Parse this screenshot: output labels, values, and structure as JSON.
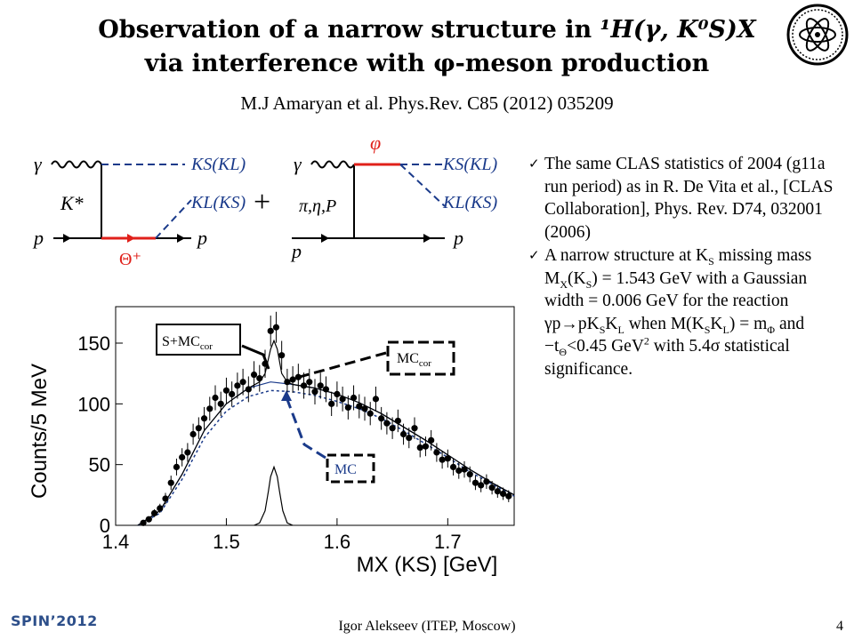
{
  "header": {
    "title_line1_prefix": "Observation of a narrow structure in ",
    "title_line1_formula": "¹H(γ, K⁰S)X",
    "title_line2": "via interference with φ-meson production",
    "citation": "M.J Amaryan et al. Phys.Rev. C85 (2012) 035209"
  },
  "diagrams": {
    "left": {
      "gamma": "γ",
      "kstar": "K*",
      "p_in": "p",
      "p_out": "p",
      "theta": "Θ⁺",
      "out_top": "KS(KL)",
      "out_bottom": "KL(KS)"
    },
    "plus": "+",
    "right": {
      "gamma": "γ",
      "phi": "φ",
      "exchange": "π,η,P",
      "p_in": "p",
      "p_out": "p",
      "out_top": "KS(KL)",
      "out_bottom": "KL(KS)"
    }
  },
  "bullets": {
    "item1": "The same CLAS statistics of 2004 (g11a run period) as in R. De Vita et al., [CLAS Collaboration], Phys. Rev. D74, 032001 (2006)",
    "item2_a": "A narrow structure at K",
    "item2_b": " missing mass M",
    "item2_c": "(K",
    "item2_d": ") = 1.543 GeV with a Gaussian width  = 0.006 GeV for the reaction γp→pK",
    "item2_e": "K",
    "item2_f": " when M(K",
    "item2_g": "K",
    "item2_h": ") = m",
    "item2_i": " and −t",
    "item2_j": "<0.45 GeV",
    "item2_k": " with 5.4σ statistical significance.",
    "sub_S": "S",
    "sub_X": "X",
    "sub_L": "L",
    "sub_phi": "Φ",
    "sub_theta": "Θ",
    "sup_2": "2"
  },
  "chart_data": {
    "type": "scatter",
    "xlabel": "MX (KS) [GeV]",
    "ylabel": "Counts/5 MeV",
    "xlim": [
      1.4,
      1.76
    ],
    "ylim": [
      0,
      180
    ],
    "x_ticks": [
      "1.4",
      "1.5",
      "1.6",
      "1.7"
    ],
    "y_ticks": [
      "0",
      "50",
      "100",
      "150"
    ],
    "grid": false,
    "annotations": {
      "s_mc": "S+MC",
      "s_mc_sub": "cor",
      "mc_cor": "MC",
      "mc_cor_sub": "cor",
      "mc": "MC"
    },
    "series": [
      {
        "name": "data",
        "x": [
          1.425,
          1.43,
          1.435,
          1.44,
          1.445,
          1.45,
          1.455,
          1.46,
          1.465,
          1.47,
          1.475,
          1.48,
          1.485,
          1.49,
          1.495,
          1.5,
          1.505,
          1.51,
          1.515,
          1.52,
          1.525,
          1.53,
          1.535,
          1.54,
          1.545,
          1.55,
          1.555,
          1.56,
          1.565,
          1.57,
          1.575,
          1.58,
          1.585,
          1.59,
          1.595,
          1.6,
          1.605,
          1.61,
          1.615,
          1.62,
          1.625,
          1.63,
          1.635,
          1.64,
          1.645,
          1.65,
          1.655,
          1.66,
          1.665,
          1.67,
          1.675,
          1.68,
          1.685,
          1.69,
          1.695,
          1.7,
          1.705,
          1.71,
          1.715,
          1.72,
          1.725,
          1.73,
          1.735,
          1.74,
          1.745,
          1.75,
          1.755
        ],
        "y": [
          2,
          5,
          10,
          14,
          22,
          35,
          48,
          56,
          60,
          75,
          80,
          88,
          96,
          105,
          100,
          111,
          108,
          115,
          118,
          112,
          124,
          121,
          133,
          160,
          163,
          140,
          118,
          120,
          122,
          115,
          118,
          110,
          115,
          112,
          100,
          108,
          104,
          97,
          105,
          98,
          96,
          92,
          104,
          88,
          84,
          80,
          86,
          75,
          72,
          80,
          64,
          65,
          70,
          60,
          54,
          55,
          48,
          45,
          46,
          42,
          35,
          33,
          36,
          31,
          28,
          26,
          24
        ]
      },
      {
        "name": "S+MCcor",
        "x": [
          1.42,
          1.44,
          1.46,
          1.48,
          1.5,
          1.52,
          1.53,
          1.535,
          1.54,
          1.543,
          1.546,
          1.55,
          1.555,
          1.56,
          1.58,
          1.6,
          1.62,
          1.64,
          1.66,
          1.68,
          1.7,
          1.72,
          1.74,
          1.76
        ],
        "y": [
          0,
          12,
          42,
          78,
          100,
          113,
          118,
          125,
          145,
          152,
          145,
          125,
          118,
          116,
          113,
          108,
          101,
          92,
          81,
          70,
          58,
          46,
          35,
          25
        ]
      },
      {
        "name": "MCcor",
        "x": [
          1.42,
          1.44,
          1.46,
          1.48,
          1.5,
          1.52,
          1.54,
          1.56,
          1.58,
          1.6,
          1.62,
          1.64,
          1.66,
          1.68,
          1.7,
          1.72,
          1.74,
          1.76
        ],
        "y": [
          0,
          12,
          42,
          78,
          100,
          113,
          118,
          116,
          113,
          108,
          101,
          92,
          81,
          70,
          58,
          46,
          35,
          25
        ]
      },
      {
        "name": "MC",
        "x": [
          1.42,
          1.44,
          1.46,
          1.48,
          1.5,
          1.52,
          1.54,
          1.56,
          1.58,
          1.6,
          1.62,
          1.64,
          1.66,
          1.68,
          1.7,
          1.72,
          1.74,
          1.76
        ],
        "y": [
          0,
          10,
          38,
          72,
          94,
          106,
          111,
          110,
          107,
          102,
          96,
          88,
          78,
          67,
          56,
          44,
          34,
          24
        ]
      },
      {
        "name": "signal",
        "x": [
          1.525,
          1.53,
          1.535,
          1.538,
          1.54,
          1.543,
          1.546,
          1.548,
          1.551,
          1.555,
          1.56
        ],
        "y": [
          0,
          2,
          12,
          28,
          40,
          48,
          40,
          28,
          12,
          2,
          0
        ]
      }
    ]
  },
  "footer": {
    "conference": "SPIN’2012",
    "author": "Igor Alekseev (ITEP, Moscow)",
    "page": "4"
  }
}
